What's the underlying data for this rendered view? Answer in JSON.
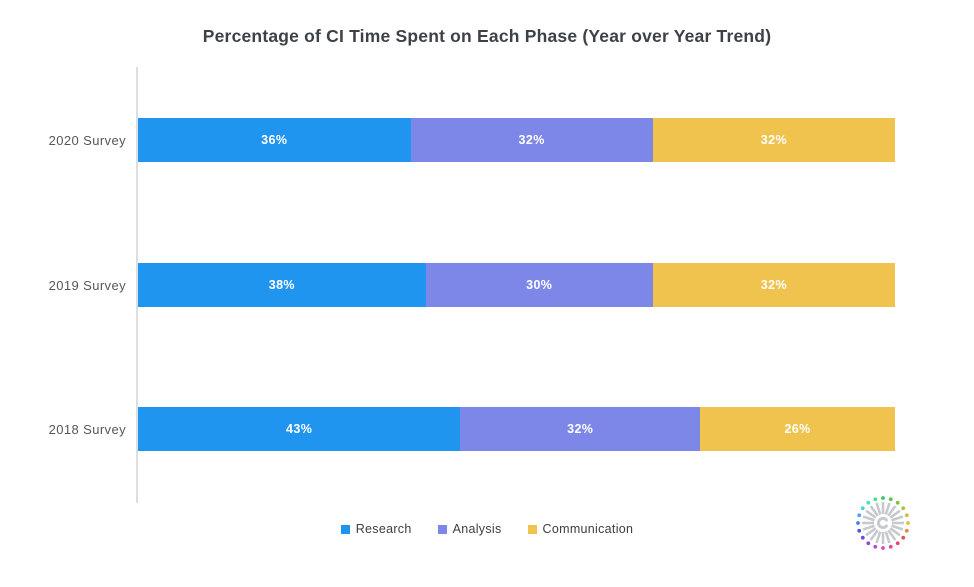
{
  "title": "Percentage of CI Time Spent on Each Phase (Year over Year Trend)",
  "chart_data": {
    "type": "bar",
    "orientation": "horizontal",
    "stacked": true,
    "title": "Percentage of CI Time Spent on Each Phase (Year over Year Trend)",
    "categories": [
      "2020 Survey",
      "2019 Survey",
      "2018 Survey"
    ],
    "series": [
      {
        "name": "Research",
        "color": "#2095F0",
        "values": [
          36,
          38,
          43
        ],
        "labels": [
          "36%",
          "38%",
          "43%"
        ]
      },
      {
        "name": "Analysis",
        "color": "#7C87E8",
        "values": [
          32,
          30,
          32
        ],
        "labels": [
          "32%",
          "30%",
          "32%"
        ]
      },
      {
        "name": "Communication",
        "color": "#F0C24E",
        "values": [
          32,
          32,
          26
        ],
        "labels": [
          "32%",
          "32%",
          "26%"
        ]
      }
    ],
    "xlim": [
      0,
      100
    ],
    "value_label_format": "percent",
    "legend_position": "bottom",
    "grid": false
  },
  "layout": {
    "row_tops": [
      118,
      263,
      407
    ],
    "axis_color": "#dcdee1"
  },
  "legend": {
    "items": [
      {
        "label": "Research",
        "color": "#2095F0"
      },
      {
        "label": "Analysis",
        "color": "#7C87E8"
      },
      {
        "label": "Communication",
        "color": "#F0C24E"
      }
    ]
  },
  "logo": {
    "name": "radial-burst-logo",
    "spoke_color": "#c6c9cd",
    "center_color": "#c8cbce",
    "dot_colors": [
      "#3fc567",
      "#57c44a",
      "#7ec43e",
      "#a7c43a",
      "#c9c23f",
      "#dfc040",
      "#e08a42",
      "#e0554a",
      "#e04a72",
      "#e04a9b",
      "#d94ac4",
      "#b44ae0",
      "#8e4ae0",
      "#6b4ae0",
      "#4a55e0",
      "#4a7ee0",
      "#4aa7e0",
      "#4ad0e0",
      "#4ae0bc",
      "#4ae08e"
    ]
  }
}
